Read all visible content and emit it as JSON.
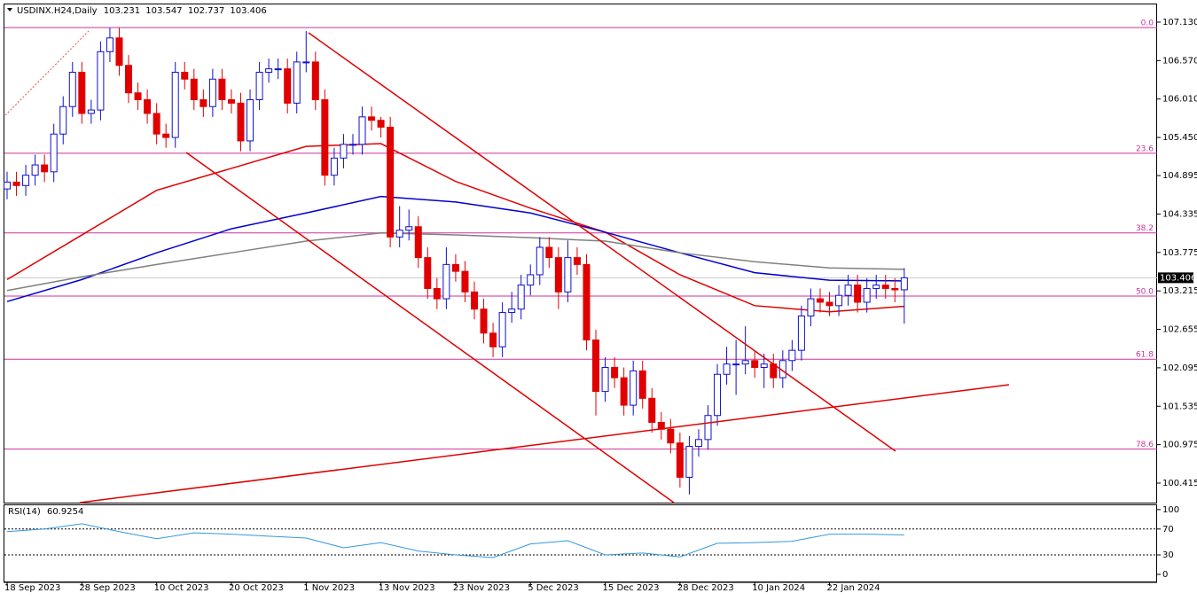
{
  "chart_data": {
    "type": "candlestick",
    "symbol": "USDINX.H24,Daily",
    "up_color": "#1010d0",
    "down_color": "#e00000",
    "categories": [
      "18 Sep 2023",
      null,
      null,
      null,
      null,
      null,
      null,
      null,
      "28 Sep 2023",
      null,
      null,
      null,
      null,
      null,
      null,
      null,
      "10 Oct 2023",
      null,
      null,
      null,
      null,
      null,
      null,
      null,
      "20 Oct 2023",
      null,
      null,
      null,
      null,
      null,
      null,
      null,
      "1 Nov 2023",
      null,
      null,
      null,
      null,
      null,
      null,
      null,
      "13 Nov 2023",
      null,
      null,
      null,
      null,
      null,
      null,
      null,
      "23 Nov 2023",
      null,
      null,
      null,
      null,
      null,
      null,
      null,
      "5 Dec 2023",
      null,
      null,
      null,
      null,
      null,
      null,
      null,
      "15 Dec 2023",
      null,
      null,
      null,
      null,
      null,
      null,
      null,
      "28 Dec 2023",
      null,
      null,
      null,
      null,
      null,
      null,
      null,
      "10 Jan 2024",
      null,
      null,
      null,
      null,
      null,
      null,
      null,
      "22 Jan 2024",
      null,
      null,
      null,
      null,
      null,
      null,
      null,
      null
    ],
    "open": [
      104.7,
      104.8,
      104.75,
      104.9,
      105.05,
      104.95,
      105.5,
      105.9,
      106.4,
      105.8,
      105.85,
      106.7,
      106.9,
      106.5,
      106.1,
      106.0,
      105.8,
      105.5,
      105.45,
      106.4,
      106.3,
      106.0,
      105.9,
      106.3,
      106.0,
      105.95,
      105.4,
      106.0,
      106.4,
      106.45,
      106.45,
      105.95,
      106.55,
      106.55,
      106.0,
      104.9,
      105.15,
      105.35,
      105.35,
      105.75,
      105.7,
      105.6,
      104.0,
      104.1,
      104.15,
      103.7,
      103.25,
      103.1,
      103.6,
      103.5,
      103.2,
      102.95,
      102.6,
      102.4,
      102.9,
      102.95,
      103.3,
      103.45,
      103.85,
      103.7,
      103.2,
      103.7,
      103.6,
      102.5,
      101.75,
      102.1,
      101.95,
      101.55,
      102.05,
      101.65,
      101.3,
      101.2,
      101.0,
      100.5,
      100.95,
      101.05,
      101.4,
      102.0,
      102.15,
      102.15,
      102.2,
      102.1,
      102.15,
      101.95,
      102.2,
      102.35,
      102.85,
      103.1,
      103.05,
      103.0,
      103.15,
      103.3,
      103.05,
      103.25,
      103.3,
      103.25,
      103.231
    ],
    "high": [
      104.95,
      104.95,
      105.05,
      105.2,
      105.2,
      105.65,
      106.05,
      106.55,
      106.55,
      106.0,
      106.85,
      107.05,
      107.05,
      106.65,
      106.25,
      106.15,
      105.95,
      105.65,
      106.55,
      106.55,
      106.45,
      106.15,
      106.45,
      106.45,
      106.15,
      106.1,
      106.15,
      106.55,
      106.6,
      106.6,
      106.6,
      106.7,
      107.0,
      106.7,
      106.15,
      105.3,
      105.5,
      105.5,
      105.9,
      105.9,
      105.75,
      105.75,
      104.45,
      104.4,
      104.3,
      103.85,
      103.4,
      103.85,
      103.75,
      103.65,
      103.35,
      103.1,
      102.75,
      103.05,
      103.2,
      103.45,
      103.6,
      104.0,
      104.0,
      103.85,
      103.95,
      103.85,
      103.75,
      102.65,
      102.25,
      102.25,
      102.1,
      102.2,
      102.2,
      101.8,
      101.45,
      101.35,
      101.15,
      101.1,
      101.2,
      101.55,
      102.15,
      102.4,
      102.5,
      102.7,
      102.35,
      102.3,
      102.3,
      102.35,
      102.5,
      103.0,
      103.25,
      103.25,
      103.2,
      103.3,
      103.45,
      103.45,
      103.4,
      103.45,
      103.45,
      103.4,
      103.547
    ],
    "low": [
      104.55,
      104.6,
      104.6,
      104.75,
      104.8,
      104.8,
      105.35,
      105.75,
      105.65,
      105.65,
      105.7,
      106.55,
      106.35,
      105.95,
      105.85,
      105.65,
      105.35,
      105.3,
      105.3,
      106.15,
      105.85,
      105.75,
      105.75,
      105.85,
      105.8,
      105.25,
      105.25,
      105.85,
      106.25,
      106.3,
      105.8,
      105.8,
      106.4,
      105.85,
      104.75,
      104.75,
      105.0,
      105.2,
      105.2,
      105.55,
      105.45,
      103.85,
      103.85,
      103.95,
      103.55,
      103.1,
      102.95,
      102.95,
      103.35,
      103.05,
      102.8,
      102.45,
      102.25,
      102.25,
      102.75,
      102.8,
      103.15,
      103.3,
      103.55,
      102.95,
      103.05,
      103.45,
      102.35,
      101.4,
      101.6,
      101.8,
      101.4,
      101.4,
      101.5,
      101.15,
      101.05,
      100.85,
      100.35,
      100.25,
      100.8,
      100.9,
      101.25,
      101.85,
      101.7,
      102.0,
      101.95,
      101.8,
      101.8,
      101.8,
      102.05,
      102.2,
      102.7,
      102.9,
      102.85,
      102.85,
      103.0,
      102.9,
      102.9,
      103.1,
      103.1,
      103.05,
      102.737
    ],
    "close": [
      104.8,
      104.75,
      104.9,
      105.05,
      104.95,
      105.5,
      105.9,
      106.4,
      105.8,
      105.85,
      106.7,
      106.9,
      106.5,
      106.1,
      106.0,
      105.8,
      105.5,
      105.45,
      106.4,
      106.3,
      106.0,
      105.9,
      106.3,
      106.0,
      105.95,
      105.4,
      106.0,
      106.4,
      106.45,
      106.45,
      105.95,
      106.55,
      106.55,
      106.0,
      104.9,
      105.15,
      105.35,
      105.35,
      105.75,
      105.7,
      105.6,
      104.0,
      104.1,
      104.15,
      103.7,
      103.25,
      103.1,
      103.6,
      103.5,
      103.2,
      102.95,
      102.6,
      102.4,
      102.9,
      102.95,
      103.3,
      103.45,
      103.85,
      103.7,
      103.2,
      103.7,
      103.6,
      102.5,
      101.75,
      102.1,
      101.95,
      101.55,
      102.05,
      101.65,
      101.3,
      101.2,
      101.0,
      100.5,
      100.95,
      101.05,
      101.4,
      102.0,
      102.15,
      102.15,
      102.2,
      102.1,
      102.15,
      101.95,
      102.2,
      102.35,
      102.85,
      103.1,
      103.05,
      103.0,
      103.15,
      103.3,
      103.05,
      103.25,
      103.3,
      103.25,
      103.23,
      103.406
    ],
    "ylim": [
      100.131,
      107.388
    ],
    "yticks": [
      {
        "value": 107.13,
        "label": "107.130"
      },
      {
        "value": 106.57,
        "label": "106.570"
      },
      {
        "value": 106.01,
        "label": "106.010"
      },
      {
        "value": 105.45,
        "label": "105.450"
      },
      {
        "value": 104.895,
        "label": "104.895"
      },
      {
        "value": 104.335,
        "label": "104.335"
      },
      {
        "value": 103.775,
        "label": "103.775"
      },
      {
        "value": 103.215,
        "label": "103.215"
      },
      {
        "value": 102.655,
        "label": "102.655"
      },
      {
        "value": 102.095,
        "label": "102.095"
      },
      {
        "value": 101.535,
        "label": "101.535"
      },
      {
        "value": 100.975,
        "label": "100.975"
      },
      {
        "value": 100.415,
        "label": "100.415"
      }
    ],
    "moving_averages": [
      {
        "color": "#e00000",
        "x": [
          0,
          8,
          16,
          24,
          32,
          40,
          48,
          56,
          64,
          72,
          80,
          88,
          96
        ],
        "values": [
          103.38,
          104.03,
          104.68,
          105.0,
          105.32,
          105.36,
          104.81,
          104.42,
          104.07,
          103.45,
          103.0,
          102.91,
          102.99
        ]
      },
      {
        "color": "#0000d0",
        "x": [
          0,
          8,
          16,
          24,
          32,
          40,
          48,
          56,
          64,
          72,
          80,
          88,
          96
        ],
        "values": [
          103.06,
          103.38,
          103.77,
          104.12,
          104.35,
          104.59,
          104.51,
          104.35,
          104.07,
          103.77,
          103.48,
          103.37,
          103.36
        ]
      },
      {
        "color": "#808080",
        "x": [
          0,
          8,
          16,
          24,
          32,
          40,
          48,
          56,
          64,
          72,
          80,
          88,
          96
        ],
        "values": [
          103.22,
          103.42,
          103.6,
          103.77,
          103.94,
          104.06,
          104.03,
          103.99,
          103.94,
          103.77,
          103.64,
          103.55,
          103.53
        ]
      }
    ],
    "fib_color": "#cc3399",
    "fib_levels": [
      {
        "label": "0.0",
        "value": 107.05
      },
      {
        "label": "23.6",
        "value": 105.22
      },
      {
        "label": "38.2",
        "value": 104.06
      },
      {
        "label": "50.0",
        "value": 103.14
      },
      {
        "label": "61.8",
        "value": 102.22
      },
      {
        "label": "78.6",
        "value": 100.91
      }
    ],
    "rsi": {
      "title": "RSI(14)",
      "color": "#3399dd",
      "x": [
        0,
        4,
        8,
        12,
        16,
        20,
        24,
        28,
        32,
        36,
        40,
        44,
        48,
        52,
        56,
        60,
        64,
        68,
        72,
        76,
        80,
        84,
        88,
        92,
        96
      ],
      "values": [
        66,
        70,
        78,
        66,
        55,
        64,
        62,
        59,
        56,
        41,
        49,
        36,
        30,
        26,
        47,
        52,
        30,
        33,
        27,
        48,
        49,
        51,
        62,
        62,
        60.9254
      ],
      "ylim": [
        -11,
        108
      ],
      "yticks": [
        100,
        70,
        30,
        0
      ],
      "levels": [
        70,
        30
      ]
    }
  }
}
